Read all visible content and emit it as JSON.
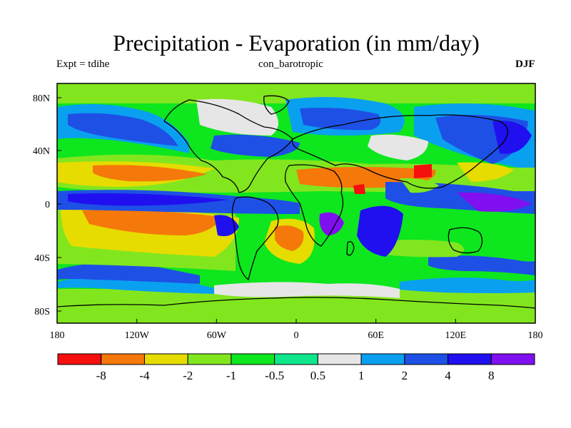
{
  "title": "Precipitation - Evaporation (in mm/day)",
  "subtitle_left": "Expt = tdihe",
  "subtitle_center": "con_barotropic",
  "subtitle_right": "DJF",
  "chart_data": {
    "type": "heatmap",
    "variable": "Precipitation - Evaporation",
    "units": "mm/day",
    "season": "DJF",
    "projection": "cylindrical equidistant",
    "lon_range": [
      -180,
      180
    ],
    "lat_range": [
      -90,
      90
    ],
    "x_ticks": [
      "180",
      "120W",
      "60W",
      "0",
      "60E",
      "120E",
      "180"
    ],
    "y_ticks": [
      "80N",
      "40N",
      "0",
      "40S",
      "80S"
    ],
    "colorbar": {
      "colors": [
        "#f50f0f",
        "#f5780a",
        "#e6dc00",
        "#82e61e",
        "#0ee61e",
        "#0fe68c",
        "#e6e6e6",
        "#0aa0f0",
        "#1e50e6",
        "#2010f0",
        "#8010f0"
      ],
      "labels": [
        "-8",
        "-4",
        "-2",
        "-1",
        "-0.5",
        "0.5",
        "1",
        "2",
        "4",
        "8"
      ]
    }
  }
}
